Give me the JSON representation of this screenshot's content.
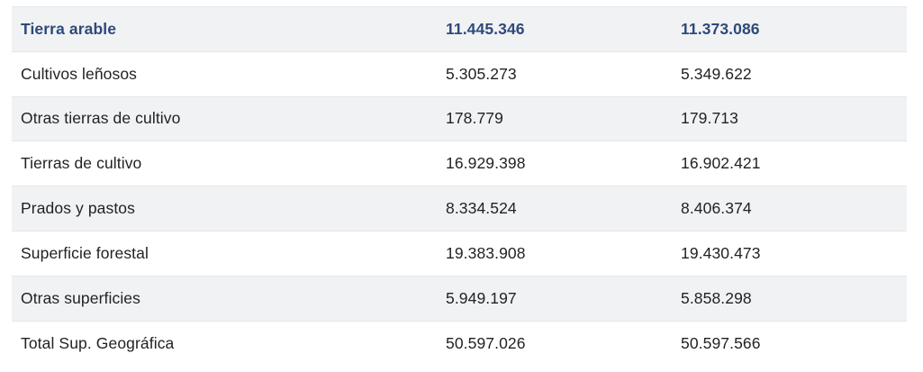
{
  "table": {
    "rows": [
      {
        "label": "Tierra arable",
        "v1": "11.445.346",
        "v2": "11.373.086"
      },
      {
        "label": "Cultivos leñosos",
        "v1": "5.305.273",
        "v2": "5.349.622"
      },
      {
        "label": "Otras tierras de cultivo",
        "v1": "178.779",
        "v2": "179.713"
      },
      {
        "label": "Tierras de cultivo",
        "v1": "16.929.398",
        "v2": "16.902.421"
      },
      {
        "label": "Prados y pastos",
        "v1": "8.334.524",
        "v2": "8.406.374"
      },
      {
        "label": "Superficie forestal",
        "v1": "19.383.908",
        "v2": "19.430.473"
      },
      {
        "label": "Otras superficies",
        "v1": "5.949.197",
        "v2": "5.858.298"
      },
      {
        "label": "Total Sup. Geográfica",
        "v1": "50.597.026",
        "v2": "50.597.566"
      }
    ]
  },
  "colors": {
    "header_text": "#2d4a7a",
    "stripe": "#f1f2f4",
    "border": "#e3e6ea"
  }
}
